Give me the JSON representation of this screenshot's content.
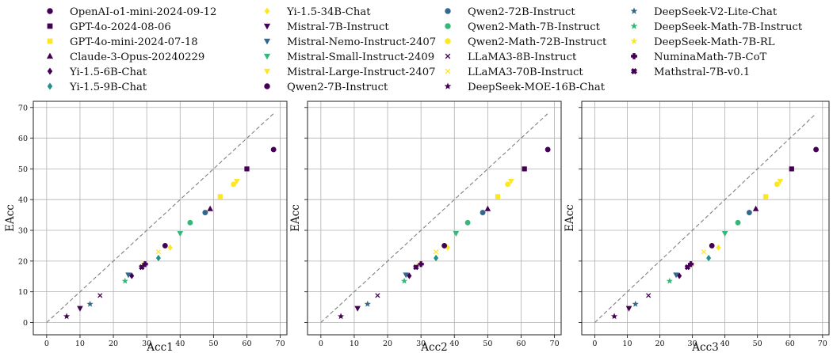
{
  "legend": [
    {
      "name": "OpenAI-o1-mini-2024-09-12",
      "marker": "circle",
      "color": "#440154"
    },
    {
      "name": "GPT-4o-2024-08-06",
      "marker": "square",
      "color": "#440154"
    },
    {
      "name": "GPT-4o-mini-2024-07-18",
      "marker": "square",
      "color": "#fde725"
    },
    {
      "name": "Claude-3-Opus-20240229",
      "marker": "triangle-up",
      "color": "#440154"
    },
    {
      "name": "Yi-1.5-6B-Chat",
      "marker": "diamond",
      "color": "#440154"
    },
    {
      "name": "Yi-1.5-9B-Chat",
      "marker": "diamond",
      "color": "#21918c"
    },
    {
      "name": "Yi-1.5-34B-Chat",
      "marker": "diamond",
      "color": "#fde725"
    },
    {
      "name": "Mistral-7B-Instruct",
      "marker": "triangle-down",
      "color": "#440154"
    },
    {
      "name": "Mistral-Nemo-Instruct-2407",
      "marker": "triangle-down",
      "color": "#31688e"
    },
    {
      "name": "Mistral-Small-Instruct-2409",
      "marker": "triangle-down",
      "color": "#35b779"
    },
    {
      "name": "Mistral-Large-Instruct-2407",
      "marker": "triangle-down",
      "color": "#fde725"
    },
    {
      "name": "Qwen2-7B-Instruct",
      "marker": "circle",
      "color": "#440154"
    },
    {
      "name": "Qwen2-72B-Instruct",
      "marker": "circle",
      "color": "#31688e"
    },
    {
      "name": "Qwen2-Math-7B-Instruct",
      "marker": "circle",
      "color": "#35b779"
    },
    {
      "name": "Qwen2-Math-72B-Instruct",
      "marker": "circle",
      "color": "#fde725"
    },
    {
      "name": "LLaMA3-8B-Instruct",
      "marker": "x",
      "color": "#440154"
    },
    {
      "name": "LLaMA3-70B-Instruct",
      "marker": "x",
      "color": "#fde725"
    },
    {
      "name": "DeepSeek-MOE-16B-Chat",
      "marker": "star",
      "color": "#440154"
    },
    {
      "name": "DeepSeek-V2-Lite-Chat",
      "marker": "star",
      "color": "#31688e"
    },
    {
      "name": "DeepSeek-Math-7B-Instruct",
      "marker": "star",
      "color": "#35b779"
    },
    {
      "name": "DeepSeek-Math-7B-RL",
      "marker": "star",
      "color": "#fde725"
    },
    {
      "name": "NuminaMath-7B-CoT",
      "marker": "plus",
      "color": "#440154"
    },
    {
      "name": "Mathstral-7B-v0.1",
      "marker": "xfilled",
      "color": "#440154"
    }
  ],
  "chart_data": [
    {
      "type": "scatter",
      "title": "",
      "xlabel": "Acc1",
      "ylabel": "EAcc",
      "xlim": [
        -4,
        72
      ],
      "ylim": [
        -4,
        72
      ],
      "xticks": [
        0,
        10,
        20,
        30,
        40,
        50,
        60,
        70
      ],
      "yticks": [
        0,
        10,
        20,
        30,
        40,
        50,
        60,
        70
      ],
      "grid": true,
      "reference_line": [
        [
          0,
          0
        ],
        [
          68,
          68
        ]
      ],
      "points": [
        {
          "model": "OpenAI-o1-mini-2024-09-12",
          "x": 68,
          "y": 56.3
        },
        {
          "model": "GPT-4o-2024-08-06",
          "x": 60,
          "y": 50
        },
        {
          "model": "GPT-4o-mini-2024-07-18",
          "x": 52,
          "y": 41
        },
        {
          "model": "Claude-3-Opus-20240229",
          "x": 49,
          "y": 37
        },
        {
          "model": "Yi-1.5-6B-Chat",
          "x": 25.5,
          "y": 15.2
        },
        {
          "model": "Yi-1.5-9B-Chat",
          "x": 33.5,
          "y": 21
        },
        {
          "model": "Yi-1.5-34B-Chat",
          "x": 37,
          "y": 24.4
        },
        {
          "model": "Mistral-7B-Instruct",
          "x": 10,
          "y": 4.6
        },
        {
          "model": "Mistral-Nemo-Instruct-2407",
          "x": 24.5,
          "y": 15.5
        },
        {
          "model": "Mistral-Small-Instruct-2409",
          "x": 40,
          "y": 29
        },
        {
          "model": "Mistral-Large-Instruct-2407",
          "x": 57,
          "y": 46
        },
        {
          "model": "Qwen2-7B-Instruct",
          "x": 35.5,
          "y": 25
        },
        {
          "model": "Qwen2-72B-Instruct",
          "x": 47.5,
          "y": 35.8
        },
        {
          "model": "Qwen2-Math-7B-Instruct",
          "x": 43,
          "y": 32.5
        },
        {
          "model": "Qwen2-Math-72B-Instruct",
          "x": 56,
          "y": 45
        },
        {
          "model": "LLaMA3-8B-Instruct",
          "x": 16,
          "y": 8.8
        },
        {
          "model": "LLaMA3-70B-Instruct",
          "x": 33.5,
          "y": 23
        },
        {
          "model": "DeepSeek-MOE-16B-Chat",
          "x": 6,
          "y": 2
        },
        {
          "model": "DeepSeek-V2-Lite-Chat",
          "x": 13,
          "y": 6
        },
        {
          "model": "DeepSeek-Math-7B-Instruct",
          "x": 23.5,
          "y": 13.5
        },
        {
          "model": "DeepSeek-Math-7B-RL",
          "x": 29,
          "y": 19
        },
        {
          "model": "NuminaMath-7B-CoT",
          "x": 29.5,
          "y": 19
        },
        {
          "model": "Mathstral-7B-v0.1",
          "x": 28.5,
          "y": 18
        }
      ]
    },
    {
      "type": "scatter",
      "title": "",
      "xlabel": "Acc2",
      "ylabel": "EAcc",
      "xlim": [
        -4,
        72
      ],
      "ylim": [
        -4,
        72
      ],
      "xticks": [
        0,
        10,
        20,
        30,
        40,
        50,
        60,
        70
      ],
      "yticks": [
        0,
        10,
        20,
        30,
        40,
        50,
        60,
        70
      ],
      "grid": true,
      "reference_line": [
        [
          0,
          0
        ],
        [
          68,
          68
        ]
      ],
      "points": [
        {
          "model": "OpenAI-o1-mini-2024-09-12",
          "x": 68,
          "y": 56.3
        },
        {
          "model": "GPT-4o-2024-08-06",
          "x": 61,
          "y": 50
        },
        {
          "model": "GPT-4o-mini-2024-07-18",
          "x": 53,
          "y": 41
        },
        {
          "model": "Claude-3-Opus-20240229",
          "x": 50,
          "y": 37
        },
        {
          "model": "Yi-1.5-6B-Chat",
          "x": 26.5,
          "y": 15.2
        },
        {
          "model": "Yi-1.5-9B-Chat",
          "x": 34.5,
          "y": 21
        },
        {
          "model": "Yi-1.5-34B-Chat",
          "x": 38,
          "y": 24.4
        },
        {
          "model": "Mistral-7B-Instruct",
          "x": 11,
          "y": 4.6
        },
        {
          "model": "Mistral-Nemo-Instruct-2407",
          "x": 25.5,
          "y": 15.5
        },
        {
          "model": "Mistral-Small-Instruct-2409",
          "x": 40.5,
          "y": 29
        },
        {
          "model": "Mistral-Large-Instruct-2407",
          "x": 57,
          "y": 46
        },
        {
          "model": "Qwen2-7B-Instruct",
          "x": 37,
          "y": 25
        },
        {
          "model": "Qwen2-72B-Instruct",
          "x": 48.5,
          "y": 35.8
        },
        {
          "model": "Qwen2-Math-7B-Instruct",
          "x": 44,
          "y": 32.5
        },
        {
          "model": "Qwen2-Math-72B-Instruct",
          "x": 56,
          "y": 45
        },
        {
          "model": "LLaMA3-8B-Instruct",
          "x": 17,
          "y": 8.8
        },
        {
          "model": "LLaMA3-70B-Instruct",
          "x": 34.5,
          "y": 23
        },
        {
          "model": "DeepSeek-MOE-16B-Chat",
          "x": 6,
          "y": 2
        },
        {
          "model": "DeepSeek-V2-Lite-Chat",
          "x": 14,
          "y": 6
        },
        {
          "model": "DeepSeek-Math-7B-Instruct",
          "x": 25,
          "y": 13.5
        },
        {
          "model": "DeepSeek-Math-7B-RL",
          "x": 29.5,
          "y": 19
        },
        {
          "model": "NuminaMath-7B-CoT",
          "x": 30,
          "y": 19
        },
        {
          "model": "Mathstral-7B-v0.1",
          "x": 28.5,
          "y": 18
        }
      ]
    },
    {
      "type": "scatter",
      "title": "",
      "xlabel": "Acc3",
      "ylabel": "EAcc",
      "xlim": [
        -4,
        72
      ],
      "ylim": [
        -4,
        72
      ],
      "xticks": [
        0,
        10,
        20,
        30,
        40,
        50,
        60,
        70
      ],
      "yticks": [
        0,
        10,
        20,
        30,
        40,
        50,
        60,
        70
      ],
      "grid": true,
      "reference_line": [
        [
          0,
          0
        ],
        [
          68,
          68
        ]
      ],
      "points": [
        {
          "model": "OpenAI-o1-mini-2024-09-12",
          "x": 68,
          "y": 56.3
        },
        {
          "model": "GPT-4o-2024-08-06",
          "x": 60.5,
          "y": 50
        },
        {
          "model": "GPT-4o-mini-2024-07-18",
          "x": 52.5,
          "y": 41
        },
        {
          "model": "Claude-3-Opus-20240229",
          "x": 49.5,
          "y": 37
        },
        {
          "model": "Yi-1.5-6B-Chat",
          "x": 26,
          "y": 15.2
        },
        {
          "model": "Yi-1.5-9B-Chat",
          "x": 35,
          "y": 21
        },
        {
          "model": "Yi-1.5-34B-Chat",
          "x": 38,
          "y": 24.4
        },
        {
          "model": "Mistral-7B-Instruct",
          "x": 10.5,
          "y": 4.6
        },
        {
          "model": "Mistral-Nemo-Instruct-2407",
          "x": 25,
          "y": 15.5
        },
        {
          "model": "Mistral-Small-Instruct-2409",
          "x": 40,
          "y": 29
        },
        {
          "model": "Mistral-Large-Instruct-2407",
          "x": 57,
          "y": 46
        },
        {
          "model": "Qwen2-7B-Instruct",
          "x": 36,
          "y": 25
        },
        {
          "model": "Qwen2-72B-Instruct",
          "x": 47.5,
          "y": 35.8
        },
        {
          "model": "Qwen2-Math-7B-Instruct",
          "x": 44,
          "y": 32.5
        },
        {
          "model": "Qwen2-Math-72B-Instruct",
          "x": 56,
          "y": 45
        },
        {
          "model": "LLaMA3-8B-Instruct",
          "x": 16.5,
          "y": 8.8
        },
        {
          "model": "LLaMA3-70B-Instruct",
          "x": 33.5,
          "y": 23
        },
        {
          "model": "DeepSeek-MOE-16B-Chat",
          "x": 6,
          "y": 2
        },
        {
          "model": "DeepSeek-V2-Lite-Chat",
          "x": 12.5,
          "y": 6
        },
        {
          "model": "DeepSeek-Math-7B-Instruct",
          "x": 23,
          "y": 13.5
        },
        {
          "model": "DeepSeek-Math-7B-RL",
          "x": 30,
          "y": 19
        },
        {
          "model": "NuminaMath-7B-CoT",
          "x": 29.5,
          "y": 19
        },
        {
          "model": "Mathstral-7B-v0.1",
          "x": 28.5,
          "y": 18
        }
      ]
    }
  ]
}
